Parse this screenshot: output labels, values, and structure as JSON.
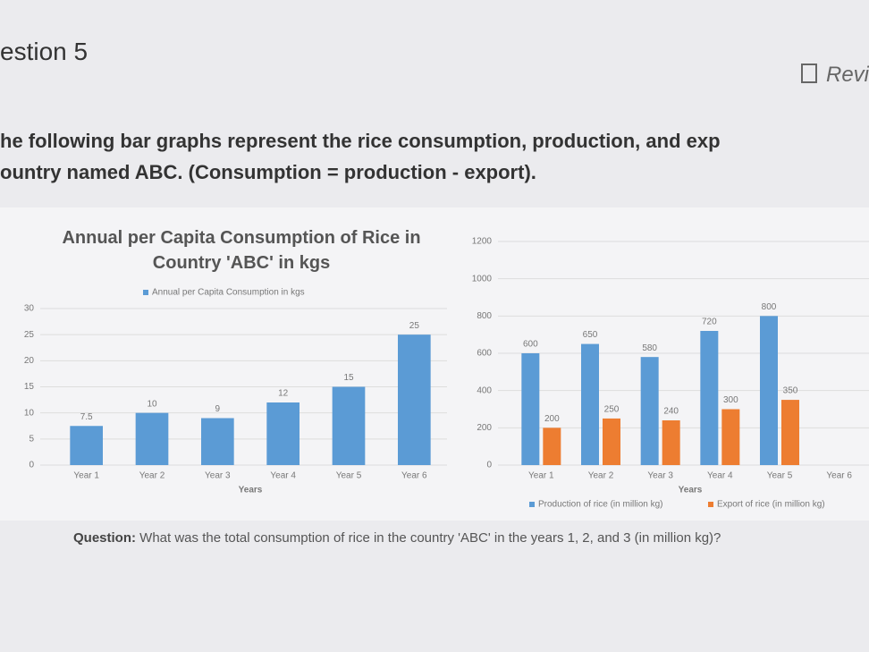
{
  "header": {
    "title": "estion 5",
    "review": "Revi"
  },
  "intro": [
    "he following bar graphs represent the rice consumption, production, and exp",
    "ountry named ABC. (Consumption = production - export)."
  ],
  "chart_data": [
    {
      "type": "bar",
      "title": "Annual per Capita Consumption of Rice in Country 'ABC' in kgs",
      "xlabel": "Years",
      "categories": [
        "Year 1",
        "Year 2",
        "Year 3",
        "Year 4",
        "Year 5",
        "Year 6"
      ],
      "series": [
        {
          "name": "Annual per Capita Consumption in kgs",
          "color": "#5b9bd5",
          "values": [
            7.5,
            10,
            9,
            12,
            15,
            25
          ]
        }
      ],
      "ylim": [
        0,
        30
      ],
      "yticks": [
        0,
        5,
        10,
        15,
        20,
        25,
        30
      ],
      "grid": true,
      "legend": "top"
    },
    {
      "type": "bar",
      "xlabel": "Years",
      "categories": [
        "Year 1",
        "Year 2",
        "Year 3",
        "Year 4",
        "Year 5",
        "Year 6"
      ],
      "series": [
        {
          "name": "Production of rice (in million kg)",
          "color": "#5b9bd5",
          "values": [
            600,
            650,
            580,
            720,
            800,
            null
          ]
        },
        {
          "name": "Export of rice (in million kg)",
          "color": "#ed7d31",
          "values": [
            200,
            250,
            240,
            300,
            350,
            null
          ]
        }
      ],
      "ylim": [
        0,
        1200
      ],
      "yticks": [
        0,
        200,
        400,
        600,
        800,
        1000,
        1200
      ],
      "grid": true,
      "legend": "bottom"
    }
  ],
  "question": {
    "label": "Question:",
    "text": "What was the total consumption of rice in the country 'ABC' in the years 1, 2, and 3 (in million kg)?"
  }
}
